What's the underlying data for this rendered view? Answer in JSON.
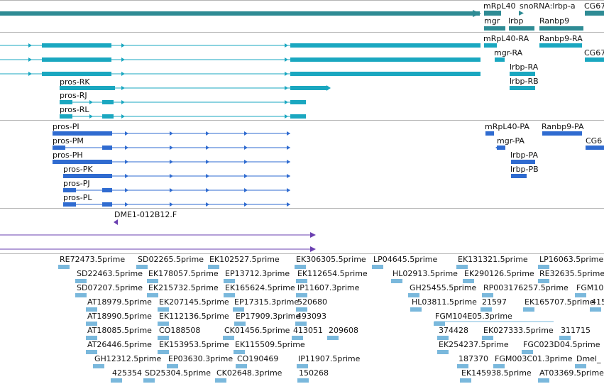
{
  "colors": {
    "background": "#ffffff",
    "separator": "#b4b4b4",
    "gene_track": "#2e8b94",
    "transcript_teal": "#1aa7c0",
    "transcript_blue": "#2f6bd0",
    "clone_purple": "#6a3fb0",
    "est_lightblue": "#7ab8dc",
    "text": "#111111"
  },
  "gene_track": {
    "labels": [
      "mRpL40",
      "snoRNA:lrbp-a",
      "CG67",
      "mgr",
      "lrbp",
      "Ranbp9"
    ]
  },
  "teal_transcripts": {
    "labels": [
      "mRpL40-RA",
      "Ranbp9-RA",
      "mgr-RA",
      "CG67",
      "lrbp-RA",
      "lrbp-RB",
      "pros-RK",
      "pros-RJ",
      "pros-RL"
    ]
  },
  "blue_transcripts": {
    "labels": [
      "pros-PI",
      "pros-PM",
      "pros-PH",
      "pros-PK",
      "pros-PJ",
      "pros-PL",
      "mRpL40-PA",
      "Ranbp9-PA",
      "CG6",
      "mgr-PA",
      "lrbp-PA",
      "lrbp-PB"
    ]
  },
  "clones": {
    "labels": [
      "DME1-012B12.F"
    ]
  },
  "ests": {
    "labels": [
      "RE72473.5prime",
      "SD02265.5prime",
      "EK102527.5prime",
      "EK306305.5prime",
      "LP04645.5prime",
      "EK131321.5prime",
      "LP16063.5prime",
      "SD22463.5prime",
      "EK178057.5prime",
      "EP13712.3prime",
      "EK112654.5prime",
      "HL02913.5prime",
      "EK290126.5prime",
      "RE32635.5prime",
      "SD07207.5prime",
      "EK215732.5prime",
      "EK165624.5prime",
      "IP11607.3prime",
      "GH25455.5prime",
      "RP003176257.5prime",
      "FGM10",
      "AT18979.5prime",
      "EK207145.5prime",
      "EP17315.3prime",
      "520680",
      "HL03811.5prime",
      "21597",
      "EK165707.5prime",
      "415",
      "AT18990.5prime",
      "EK112136.5prime",
      "EP17909.3prime",
      "493093",
      "FGM104E05.3prime",
      "AT18085.5prime",
      "CO188508",
      "CK01456.5prime",
      "413051",
      "209608",
      "374428",
      "EK027333.5prime",
      "311715",
      "AT26446.5prime",
      "EK153953.5prime",
      "EK115509.5prime",
      "EK254237.5prime",
      "FGC023D04.5prime",
      "GH12312.5prime",
      "EP03630.3prime",
      "CO190469",
      "IP11907.5prime",
      "187370",
      "FGM003C01.3prime",
      "Dmel_",
      "425354",
      "SD25304.5prime",
      "CK02648.3prime",
      "150268",
      "EK145938.5prime",
      "AT03369.5prime"
    ]
  }
}
